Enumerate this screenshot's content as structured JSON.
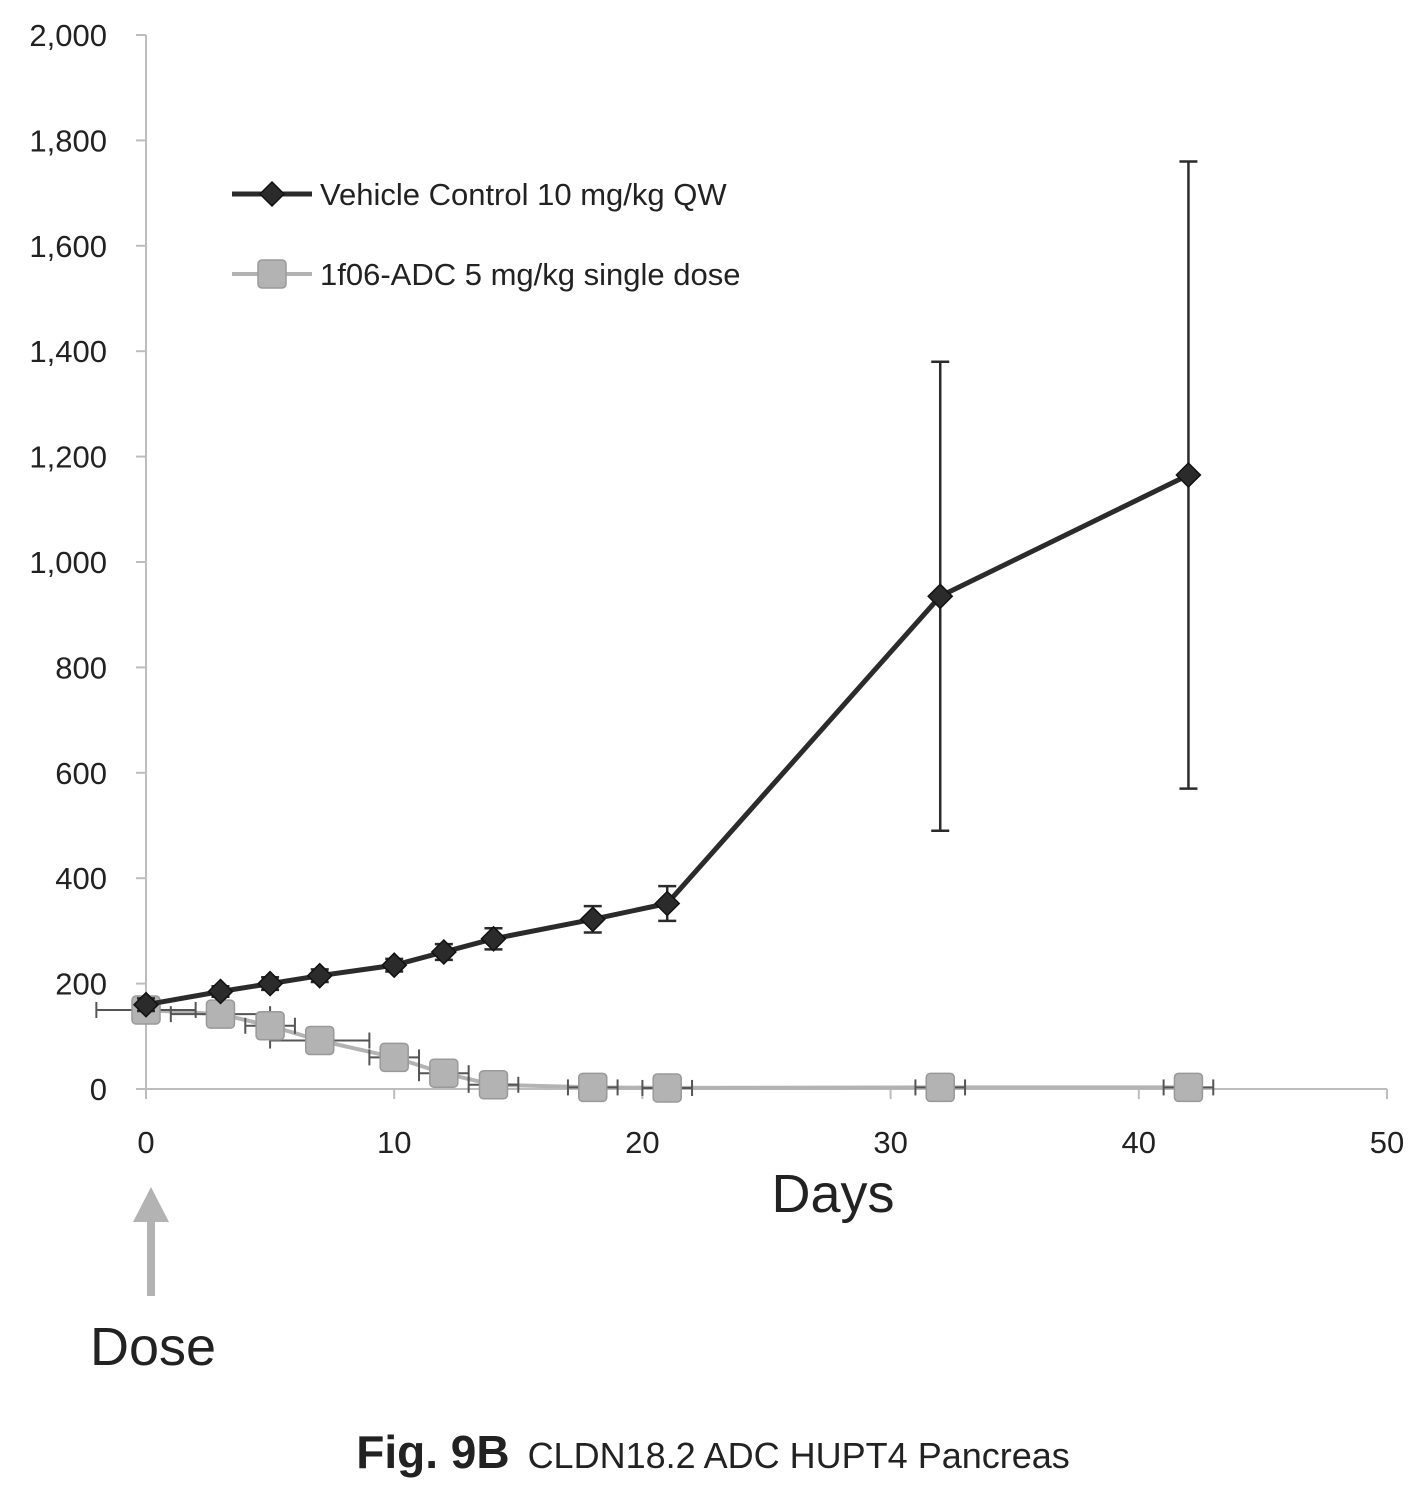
{
  "chart_data": {
    "type": "line",
    "xlabel": "Days",
    "ylabel": "",
    "xlim": [
      0,
      50
    ],
    "ylim": [
      0,
      2000
    ],
    "x_ticks": [
      "0",
      "10",
      "20",
      "30",
      "40",
      "50"
    ],
    "y_ticks": [
      "0",
      "200",
      "400",
      "600",
      "800",
      "1,000",
      "1,200",
      "1,400",
      "1,600",
      "1,800",
      "2,000"
    ],
    "grid": false,
    "legend_position": "top-left",
    "series": [
      {
        "name": "Vehicle Control 10 mg/kg  QW",
        "color": "#2b2b2b",
        "marker": "diamond",
        "x": [
          0,
          3,
          5,
          7,
          10,
          12,
          14,
          18,
          21,
          32,
          42
        ],
        "y": [
          160,
          185,
          200,
          215,
          235,
          260,
          285,
          322,
          352,
          935,
          1165
        ],
        "y_error": [
          12,
          10,
          12,
          12,
          12,
          15,
          20,
          25,
          33,
          445,
          595
        ]
      },
      {
        "name": "1f06-ADC 5 mg/kg single dose",
        "color": "#b3b3b3",
        "marker": "square",
        "x": [
          0,
          3,
          5,
          7,
          10,
          12,
          14,
          18,
          21,
          32,
          42
        ],
        "y": [
          150,
          142,
          120,
          92,
          60,
          30,
          8,
          3,
          2,
          3,
          3
        ],
        "x_error": [
          2,
          2,
          1,
          2,
          1,
          1,
          1,
          1,
          1,
          1,
          1
        ]
      }
    ]
  },
  "annotation": {
    "label": "Dose",
    "arrow_color": "#b3b3b3"
  },
  "caption": {
    "figure_label": "Fig. 9B",
    "text": "CLDN18.2 ADC HUPT4 Pancreas"
  }
}
